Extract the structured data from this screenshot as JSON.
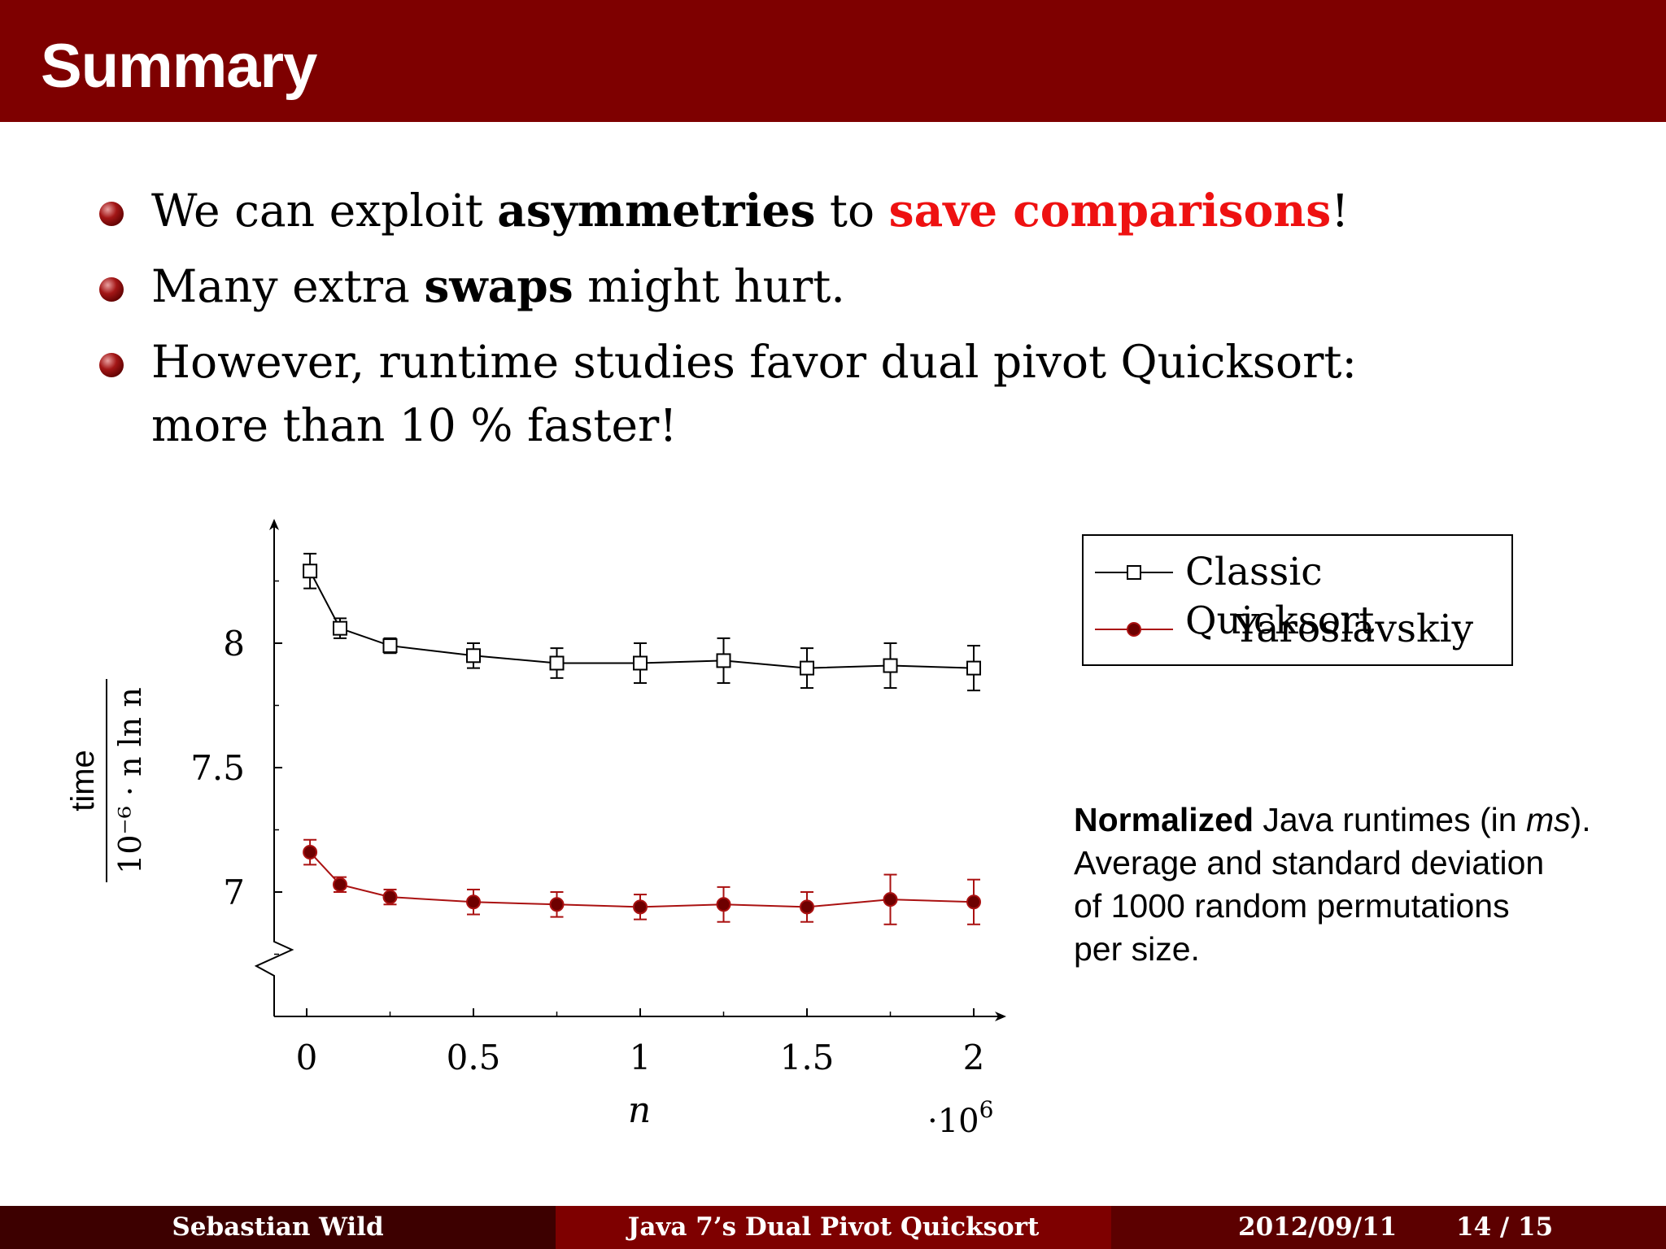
{
  "slide": {
    "title": "Summary"
  },
  "bullets": [
    {
      "parts": [
        "We can exploit ",
        "asymmetries",
        " to ",
        "save comparisons",
        "!"
      ]
    },
    {
      "parts": [
        "Many extra ",
        "swaps",
        " might hurt."
      ]
    },
    {
      "line1": "However, runtime studies favor dual pivot Quicksort:",
      "line2": "more than 10 % faster!"
    }
  ],
  "chart_data": {
    "type": "line",
    "xlabel": "n",
    "x_multiplier": "·10",
    "x_multiplier_exp": "6",
    "ylabel_numerator": "time",
    "ylabel_denominator": "10⁻⁶ · n ln n",
    "xlim": [
      -0.1,
      2.1
    ],
    "ylim": [
      6.5,
      8.5
    ],
    "x_ticks": [
      0,
      0.5,
      1,
      1.5,
      2
    ],
    "x_tick_labels": [
      "0",
      "0.5",
      "1",
      "1.5",
      "2"
    ],
    "y_ticks": [
      7,
      7.5,
      8
    ],
    "y_tick_labels": [
      "7",
      "7.5",
      "8"
    ],
    "axis_break": "y",
    "grid": false,
    "legend_position": "top-right, outside plot",
    "x": [
      0.01,
      0.1,
      0.25,
      0.5,
      0.75,
      1,
      1.25,
      1.5,
      1.75,
      2
    ],
    "series": [
      {
        "name": "Classic Quicksort",
        "marker": "open-square",
        "color": "#000000",
        "values": [
          8.29,
          8.06,
          7.99,
          7.95,
          7.92,
          7.92,
          7.93,
          7.9,
          7.91,
          7.9
        ],
        "std": [
          0.07,
          0.04,
          0.03,
          0.05,
          0.06,
          0.08,
          0.09,
          0.08,
          0.09,
          0.09
        ]
      },
      {
        "name": "Yaroslavskiy",
        "marker": "filled-circle",
        "color": "#aa1111",
        "values": [
          7.16,
          7.03,
          6.98,
          6.96,
          6.95,
          6.94,
          6.95,
          6.94,
          6.97,
          6.96
        ],
        "std": [
          0.05,
          0.03,
          0.03,
          0.05,
          0.05,
          0.05,
          0.07,
          0.06,
          0.1,
          0.09
        ]
      }
    ]
  },
  "note": {
    "bold": "Normalized",
    "text1": " Java runtimes (in ",
    "italic": "ms",
    "text2": ").",
    "line2": "Average and standard deviation",
    "line3": "of 1000 random permutations",
    "line4": "per size."
  },
  "footer": {
    "author": "Sebastian Wild",
    "talk_title": "Java 7’s Dual Pivot Quicksort",
    "date": "2012/09/11",
    "page": "14 / 15",
    "colors": [
      "#3d0000",
      "#7e0000",
      "#5c0000"
    ]
  }
}
